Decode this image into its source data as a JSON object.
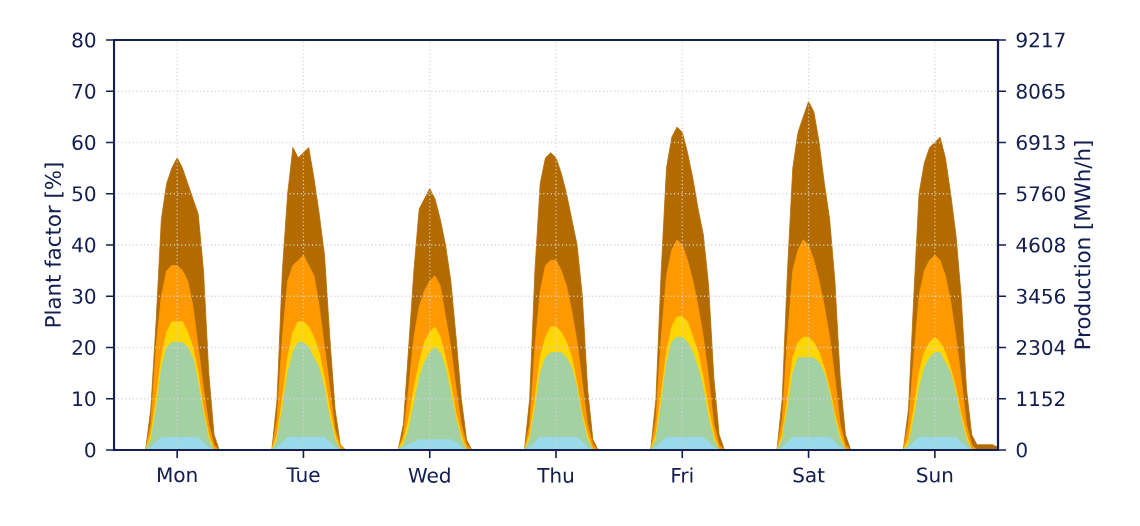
{
  "chart_data": {
    "type": "area",
    "ylabel": "Plant factor [%]",
    "y2label": "Production [MWh/h]",
    "categories": [
      null,
      null,
      null,
      null,
      null,
      null,
      null,
      null,
      null,
      null,
      null,
      null,
      "Mon",
      null,
      null,
      null,
      null,
      null,
      null,
      null,
      null,
      null,
      null,
      null,
      null,
      null,
      null,
      null,
      null,
      null,
      null,
      null,
      null,
      null,
      null,
      null,
      "Tue",
      null,
      null,
      null,
      null,
      null,
      null,
      null,
      null,
      null,
      null,
      null,
      null,
      null,
      null,
      null,
      null,
      null,
      null,
      null,
      null,
      null,
      null,
      null,
      "Wed",
      null,
      null,
      null,
      null,
      null,
      null,
      null,
      null,
      null,
      null,
      null,
      null,
      null,
      null,
      null,
      null,
      null,
      null,
      null,
      null,
      null,
      null,
      null,
      "Thu",
      null,
      null,
      null,
      null,
      null,
      null,
      null,
      null,
      null,
      null,
      null,
      null,
      null,
      null,
      null,
      null,
      null,
      null,
      null,
      null,
      null,
      null,
      null,
      "Fri",
      null,
      null,
      null,
      null,
      null,
      null,
      null,
      null,
      null,
      null,
      null,
      null,
      null,
      null,
      null,
      null,
      null,
      null,
      null,
      null,
      null,
      null,
      null,
      "Sat",
      null,
      null,
      null,
      null,
      null,
      null,
      null,
      null,
      null,
      null,
      null,
      null,
      null,
      null,
      null,
      null,
      null,
      null,
      null,
      null,
      null,
      null,
      null,
      "Sun",
      null,
      null,
      null,
      null,
      null,
      null,
      null,
      null,
      null,
      null,
      null,
      null
    ],
    "series": [
      {
        "color": "#b36b00",
        "values": [
          0,
          0,
          0,
          0,
          0,
          0,
          0,
          8,
          25,
          45,
          52,
          55,
          57,
          55,
          52,
          49,
          46,
          35,
          15,
          3,
          0,
          0,
          0,
          0,
          0,
          0,
          0,
          0,
          0,
          0,
          0,
          10,
          35,
          50,
          59,
          57,
          58,
          59,
          53,
          46,
          38,
          22,
          8,
          1,
          0,
          0,
          0,
          0,
          0,
          0,
          0,
          0,
          0,
          0,
          0,
          5,
          20,
          35,
          47,
          49,
          51,
          49,
          45,
          40,
          33,
          22,
          10,
          2,
          0,
          0,
          0,
          0,
          0,
          0,
          0,
          0,
          0,
          0,
          0,
          10,
          35,
          52,
          57,
          58,
          57,
          54,
          50,
          45,
          40,
          30,
          12,
          2,
          0,
          0,
          0,
          0,
          0,
          0,
          0,
          0,
          0,
          0,
          0,
          10,
          35,
          55,
          61,
          63,
          62,
          58,
          53,
          47,
          42,
          32,
          14,
          3,
          0,
          0,
          0,
          0,
          0,
          0,
          0,
          0,
          0,
          0,
          0,
          10,
          35,
          55,
          62,
          65,
          68,
          66,
          60,
          52,
          45,
          33,
          14,
          3,
          0,
          0,
          0,
          0,
          0,
          0,
          0,
          0,
          0,
          0,
          0,
          8,
          30,
          50,
          56,
          59,
          60,
          61,
          57,
          50,
          42,
          30,
          12,
          3,
          1,
          1,
          1,
          1,
          0.5
        ]
      },
      {
        "color": "#ff9900",
        "values": [
          0,
          0,
          0,
          0,
          0,
          0,
          0,
          5,
          20,
          30,
          35,
          36,
          36,
          35,
          33,
          28,
          20,
          12,
          5,
          1,
          0,
          0,
          0,
          0,
          0,
          0,
          0,
          0,
          0,
          0,
          0,
          6,
          22,
          33,
          36,
          37,
          38,
          36,
          34,
          28,
          20,
          12,
          4,
          1,
          0,
          0,
          0,
          0,
          0,
          0,
          0,
          0,
          0,
          0,
          0,
          3,
          12,
          22,
          28,
          31,
          33,
          34,
          32,
          26,
          20,
          12,
          5,
          1,
          0,
          0,
          0,
          0,
          0,
          0,
          0,
          0,
          0,
          0,
          0,
          5,
          20,
          31,
          36,
          37,
          37,
          35,
          32,
          27,
          21,
          13,
          5,
          1,
          0,
          0,
          0,
          0,
          0,
          0,
          0,
          0,
          0,
          0,
          0,
          6,
          22,
          34,
          39,
          41,
          40,
          37,
          33,
          28,
          22,
          14,
          5,
          1,
          0,
          0,
          0,
          0,
          0,
          0,
          0,
          0,
          0,
          0,
          0,
          6,
          22,
          35,
          39,
          41,
          40,
          37,
          33,
          28,
          22,
          14,
          5,
          1,
          0,
          0,
          0,
          0,
          0,
          0,
          0,
          0,
          0,
          0,
          0,
          5,
          18,
          30,
          35,
          37,
          38,
          37,
          34,
          29,
          22,
          14,
          5,
          1,
          0,
          0,
          0,
          0,
          0
        ]
      },
      {
        "color": "#ffd700",
        "values": [
          0,
          0,
          0,
          0,
          0,
          0,
          0,
          3,
          10,
          18,
          23,
          25,
          25,
          25,
          23,
          20,
          15,
          8,
          3,
          0,
          0,
          0,
          0,
          0,
          0,
          0,
          0,
          0,
          0,
          0,
          0,
          3,
          10,
          18,
          23,
          25,
          25,
          24,
          22,
          19,
          14,
          8,
          3,
          0,
          0,
          0,
          0,
          0,
          0,
          0,
          0,
          0,
          0,
          0,
          0,
          2,
          6,
          12,
          17,
          21,
          23,
          24,
          22,
          18,
          13,
          7,
          3,
          0,
          0,
          0,
          0,
          0,
          0,
          0,
          0,
          0,
          0,
          0,
          0,
          3,
          10,
          18,
          22,
          24,
          24,
          23,
          21,
          18,
          13,
          7,
          3,
          0,
          0,
          0,
          0,
          0,
          0,
          0,
          0,
          0,
          0,
          0,
          0,
          3,
          11,
          19,
          24,
          26,
          26,
          25,
          22,
          19,
          14,
          8,
          3,
          0,
          0,
          0,
          0,
          0,
          0,
          0,
          0,
          0,
          0,
          0,
          0,
          3,
          10,
          18,
          21,
          22,
          22,
          21,
          19,
          16,
          12,
          7,
          3,
          0,
          0,
          0,
          0,
          0,
          0,
          0,
          0,
          0,
          0,
          0,
          0,
          2,
          8,
          15,
          19,
          21,
          22,
          21,
          19,
          16,
          12,
          7,
          3,
          0,
          0,
          0,
          0,
          0,
          0
        ]
      },
      {
        "color": "#a3d1a3",
        "values": [
          0,
          0,
          0,
          0,
          0,
          0,
          0,
          2,
          8,
          16,
          20,
          21,
          21,
          21,
          20,
          18,
          13,
          7,
          2,
          0,
          0,
          0,
          0,
          0,
          0,
          0,
          0,
          0,
          0,
          0,
          0,
          2,
          8,
          15,
          19,
          21,
          21,
          20,
          18,
          16,
          12,
          6,
          2,
          0,
          0,
          0,
          0,
          0,
          0,
          0,
          0,
          0,
          0,
          0,
          0,
          1,
          4,
          9,
          14,
          17,
          19,
          20,
          19,
          16,
          11,
          6,
          2,
          0,
          0,
          0,
          0,
          0,
          0,
          0,
          0,
          0,
          0,
          0,
          0,
          2,
          8,
          15,
          18,
          19,
          19,
          19,
          18,
          16,
          12,
          6,
          2,
          0,
          0,
          0,
          0,
          0,
          0,
          0,
          0,
          0,
          0,
          0,
          0,
          2,
          9,
          17,
          21,
          22,
          22,
          21,
          19,
          16,
          12,
          6,
          2,
          0,
          0,
          0,
          0,
          0,
          0,
          0,
          0,
          0,
          0,
          0,
          0,
          2,
          8,
          15,
          18,
          18,
          18,
          18,
          17,
          15,
          11,
          6,
          2,
          0,
          0,
          0,
          0,
          0,
          0,
          0,
          0,
          0,
          0,
          0,
          0,
          1,
          6,
          12,
          16,
          18,
          19,
          19,
          17,
          15,
          11,
          6,
          2,
          0,
          0,
          0,
          0,
          0,
          0
        ]
      },
      {
        "color": "#99d9ea",
        "values": [
          0,
          0,
          0,
          0,
          0,
          0,
          0,
          0.5,
          1.5,
          2.5,
          2.5,
          2.5,
          2.5,
          2.5,
          2.5,
          2.5,
          2.5,
          1.5,
          0.5,
          0,
          0,
          0,
          0,
          0,
          0,
          0,
          0,
          0,
          0,
          0,
          0,
          0.5,
          1.5,
          2.5,
          2.5,
          2.5,
          2.5,
          2.5,
          2.5,
          2.5,
          2.5,
          1.5,
          0.5,
          0,
          0,
          0,
          0,
          0,
          0,
          0,
          0,
          0,
          0,
          0,
          0,
          0.5,
          1,
          1.5,
          2,
          2,
          2,
          2,
          2,
          2,
          2,
          1.5,
          0.5,
          0,
          0,
          0,
          0,
          0,
          0,
          0,
          0,
          0,
          0,
          0,
          0,
          0.5,
          1.5,
          2.5,
          2.5,
          2.5,
          2.5,
          2.5,
          2.5,
          2.5,
          2.5,
          1.5,
          0.5,
          0,
          0,
          0,
          0,
          0,
          0,
          0,
          0,
          0,
          0,
          0,
          0,
          0.5,
          1.5,
          2.5,
          2.5,
          2.5,
          2.5,
          2.5,
          2.5,
          2.5,
          2.5,
          1.5,
          0.5,
          0,
          0,
          0,
          0,
          0,
          0,
          0,
          0,
          0,
          0,
          0,
          0,
          0.5,
          1.5,
          2.5,
          2.5,
          2.5,
          2.5,
          2.5,
          2.5,
          2.5,
          2.5,
          1.5,
          0.5,
          0,
          0,
          0,
          0,
          0,
          0,
          0,
          0,
          0,
          0,
          0,
          0,
          0.5,
          1.5,
          2.5,
          2.5,
          2.5,
          2.5,
          2.5,
          2.5,
          2.5,
          2.5,
          1.5,
          0.5,
          0,
          0,
          0,
          0,
          0,
          0
        ]
      }
    ],
    "ylim": [
      0,
      80
    ],
    "yticks": [
      0,
      10,
      20,
      30,
      40,
      50,
      60,
      70,
      80
    ],
    "y2lim": [
      0,
      9217
    ],
    "y2ticks": [
      0,
      1152,
      2304,
      3456,
      4608,
      5760,
      6913,
      8065,
      9217
    ],
    "grid": true
  }
}
